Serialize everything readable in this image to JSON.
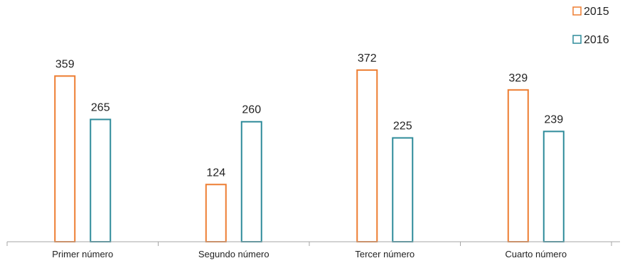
{
  "chart_data": {
    "type": "bar",
    "categories": [
      "Primer número",
      "Segundo número",
      "Tercer número",
      "Cuarto número"
    ],
    "series": [
      {
        "name": "2015",
        "values": [
          359,
          124,
          372,
          329
        ],
        "color": "#ED7D31"
      },
      {
        "name": "2016",
        "values": [
          265,
          260,
          225,
          239
        ],
        "color": "#2E8B9A"
      }
    ],
    "ylim": [
      0,
      400
    ],
    "grid": false,
    "legend": "top-right",
    "bar_style": "outlined"
  }
}
